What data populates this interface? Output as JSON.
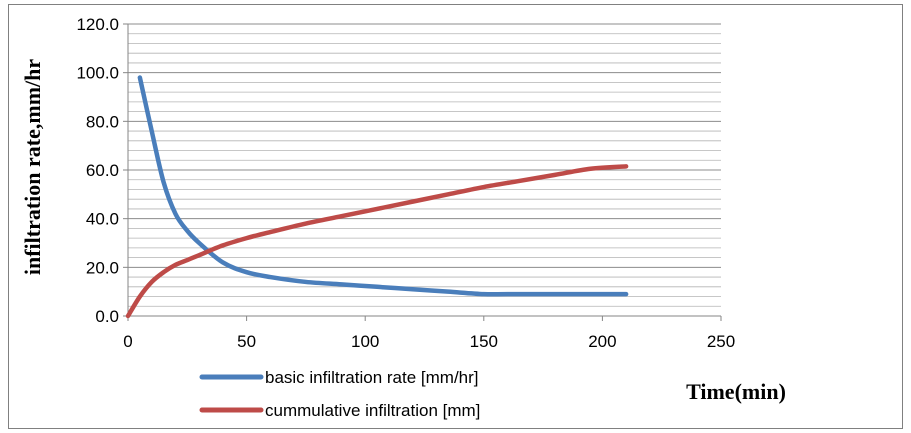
{
  "chart_data": {
    "type": "line",
    "xlabel": "Time(min)",
    "ylabel": "infiltration rate,mm/hr",
    "xlim": [
      0,
      250
    ],
    "ylim": [
      0,
      120
    ],
    "x_ticks": [
      "0",
      "50",
      "100",
      "150",
      "200",
      "250"
    ],
    "y_ticks": [
      "0.0",
      "20.0",
      "40.0",
      "60.0",
      "80.0",
      "100.0",
      "120.0"
    ],
    "grid": true,
    "legend_position": "bottom",
    "series": [
      {
        "name": "basic infiltration rate [mm/hr]",
        "color": "#4a7ebb",
        "x": [
          5,
          10,
          15,
          20,
          25,
          30,
          40,
          50,
          60,
          75,
          90,
          105,
          120,
          135,
          150,
          160,
          180,
          195,
          210
        ],
        "y": [
          98,
          76,
          55,
          42,
          35,
          30,
          22,
          18,
          16,
          14,
          13,
          12,
          11,
          10,
          9,
          9,
          9,
          9,
          9
        ]
      },
      {
        "name": "cummulative infiltration [mm]",
        "color": "#be4b48",
        "x": [
          0,
          5,
          10,
          15,
          20,
          25,
          30,
          40,
          50,
          60,
          75,
          90,
          105,
          120,
          135,
          150,
          165,
          180,
          195,
          210
        ],
        "y": [
          0,
          8,
          14,
          18,
          21,
          23,
          25,
          29,
          32,
          34.5,
          38,
          41,
          44,
          47,
          50,
          53,
          55.5,
          58,
          60.5,
          61.5
        ]
      }
    ]
  }
}
